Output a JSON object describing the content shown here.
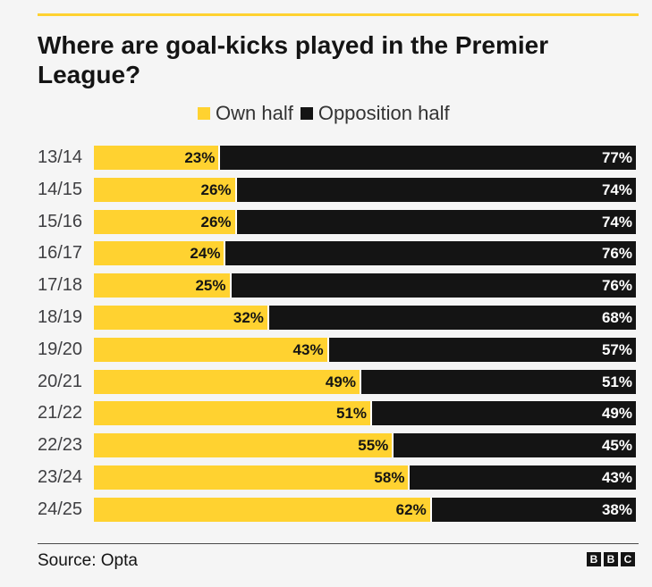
{
  "header": {
    "rule_color": "#ffd230"
  },
  "chart_data": {
    "type": "bar",
    "orientation": "horizontal",
    "stacked": true,
    "title": "Where are goal-kicks played in the Premier League?",
    "categories": [
      "13/14",
      "14/15",
      "15/16",
      "16/17",
      "17/18",
      "18/19",
      "19/20",
      "20/21",
      "21/22",
      "22/23",
      "23/24",
      "24/25"
    ],
    "series": [
      {
        "name": "Own half",
        "color": "#ffd230",
        "label_color": "#141414",
        "values": [
          23,
          26,
          26,
          24,
          25,
          32,
          43,
          49,
          51,
          55,
          58,
          62
        ]
      },
      {
        "name": "Opposition half",
        "color": "#141414",
        "label_color": "#ffffff",
        "values": [
          77,
          74,
          74,
          76,
          76,
          68,
          57,
          51,
          49,
          45,
          43,
          38
        ]
      }
    ],
    "unit": "%",
    "xlim": [
      0,
      100
    ],
    "legend": "top",
    "grid": false,
    "data_labels": true
  },
  "footer": {
    "source": "Source: Opta",
    "logo": [
      "B",
      "B",
      "C"
    ]
  }
}
